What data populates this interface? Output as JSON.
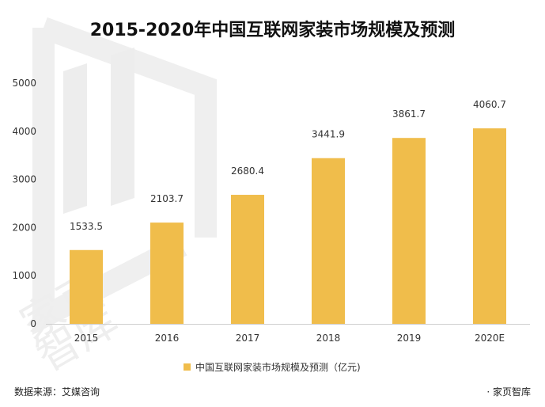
{
  "chart_data": {
    "type": "bar",
    "title": "2015-2020年中国互联网家装市场规模及预测",
    "categories": [
      "2015",
      "2016",
      "2017",
      "2018",
      "2019",
      "2020E"
    ],
    "series": [
      {
        "name": "中国互联网家装市场规模及预测（亿元)",
        "values": [
          1533.5,
          2103.7,
          2680.4,
          3441.9,
          3861.7,
          4060.7
        ],
        "color": "#f0bd4b"
      }
    ],
    "data_labels": [
      "1533.5",
      "2103.7",
      "2680.4",
      "3441.9",
      "3861.7",
      "4060.7"
    ],
    "yticks": [
      "0",
      "1000",
      "2000",
      "3000",
      "4000",
      "5000"
    ],
    "ylim": [
      0,
      5000
    ],
    "grid": false,
    "legend": "bottom-center"
  },
  "footer": {
    "source": "数据来源：艾媒咨询",
    "brand": "· 家页智库"
  },
  "watermark_text": "家页智库"
}
